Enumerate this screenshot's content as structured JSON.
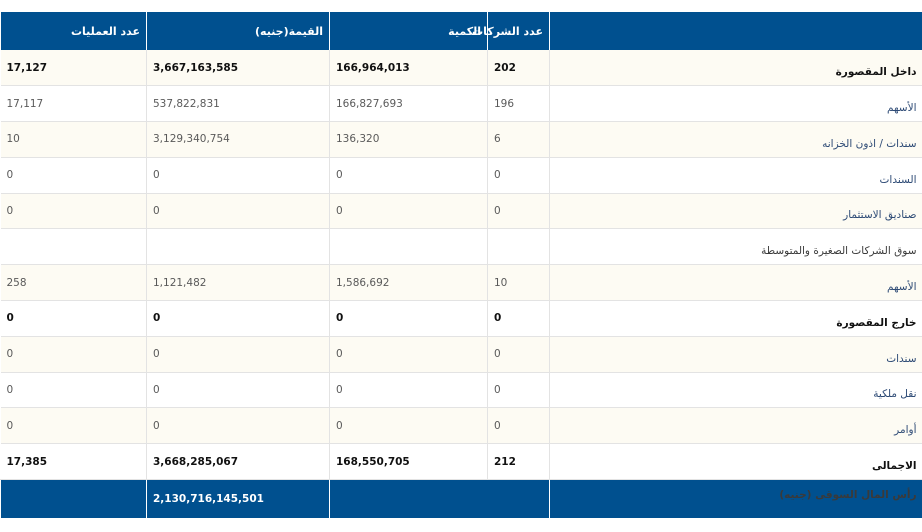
{
  "header": {
    "col_label": "",
    "col_companies": "عدد الشركات",
    "col_quantity": "الكمية",
    "col_value": "القيمة(جنيه)",
    "col_operations": "عدد العمليات"
  },
  "rows": [
    {
      "label": "داخل المقصورة",
      "companies": "202",
      "quantity": "166,964,013",
      "value": "3,667,163,585",
      "operations": "17,127",
      "style": "bold"
    },
    {
      "label": "الأسهم",
      "companies": "196",
      "quantity": "166,827,693",
      "value": "537,822,831",
      "operations": "17,117",
      "style": "sub"
    },
    {
      "label": "سندات / اذون الخزانه",
      "companies": "6",
      "quantity": "136,320",
      "value": "3,129,340,754",
      "operations": "10",
      "style": "sub"
    },
    {
      "label": "السندات",
      "companies": "0",
      "quantity": "0",
      "value": "0",
      "operations": "0",
      "style": "sub"
    },
    {
      "label": "صناديق الاستثمار",
      "companies": "0",
      "quantity": "0",
      "value": "0",
      "operations": "0",
      "style": "sub"
    },
    {
      "label": "سوق الشركات الصغيرة والمتوسطة",
      "companies": "",
      "quantity": "",
      "value": "",
      "operations": "",
      "style": "plain"
    },
    {
      "label": "الأسهم",
      "companies": "10",
      "quantity": "1,586,692",
      "value": "1,121,482",
      "operations": "258",
      "style": "sub"
    },
    {
      "label": "خارج المقصورة",
      "companies": "0",
      "quantity": "0",
      "value": "0",
      "operations": "0",
      "style": "bold"
    },
    {
      "label": "سندات",
      "companies": "0",
      "quantity": "0",
      "value": "0",
      "operations": "0",
      "style": "sub"
    },
    {
      "label": "نقل ملكية",
      "companies": "0",
      "quantity": "0",
      "value": "0",
      "operations": "0",
      "style": "sub"
    },
    {
      "label": "أوامر",
      "companies": "0",
      "quantity": "0",
      "value": "0",
      "operations": "0",
      "style": "sub"
    },
    {
      "label": "الاجمالى",
      "companies": "212",
      "quantity": "168,550,705",
      "value": "3,668,285,067",
      "operations": "17,385",
      "style": "bold"
    }
  ],
  "footer": {
    "label": "رأس المال السوقى (جنيه)",
    "value": "2,130,716,145,501"
  },
  "colors": {
    "header_bg": "#00508f",
    "row_alt_bg": "#fdfbf3"
  }
}
